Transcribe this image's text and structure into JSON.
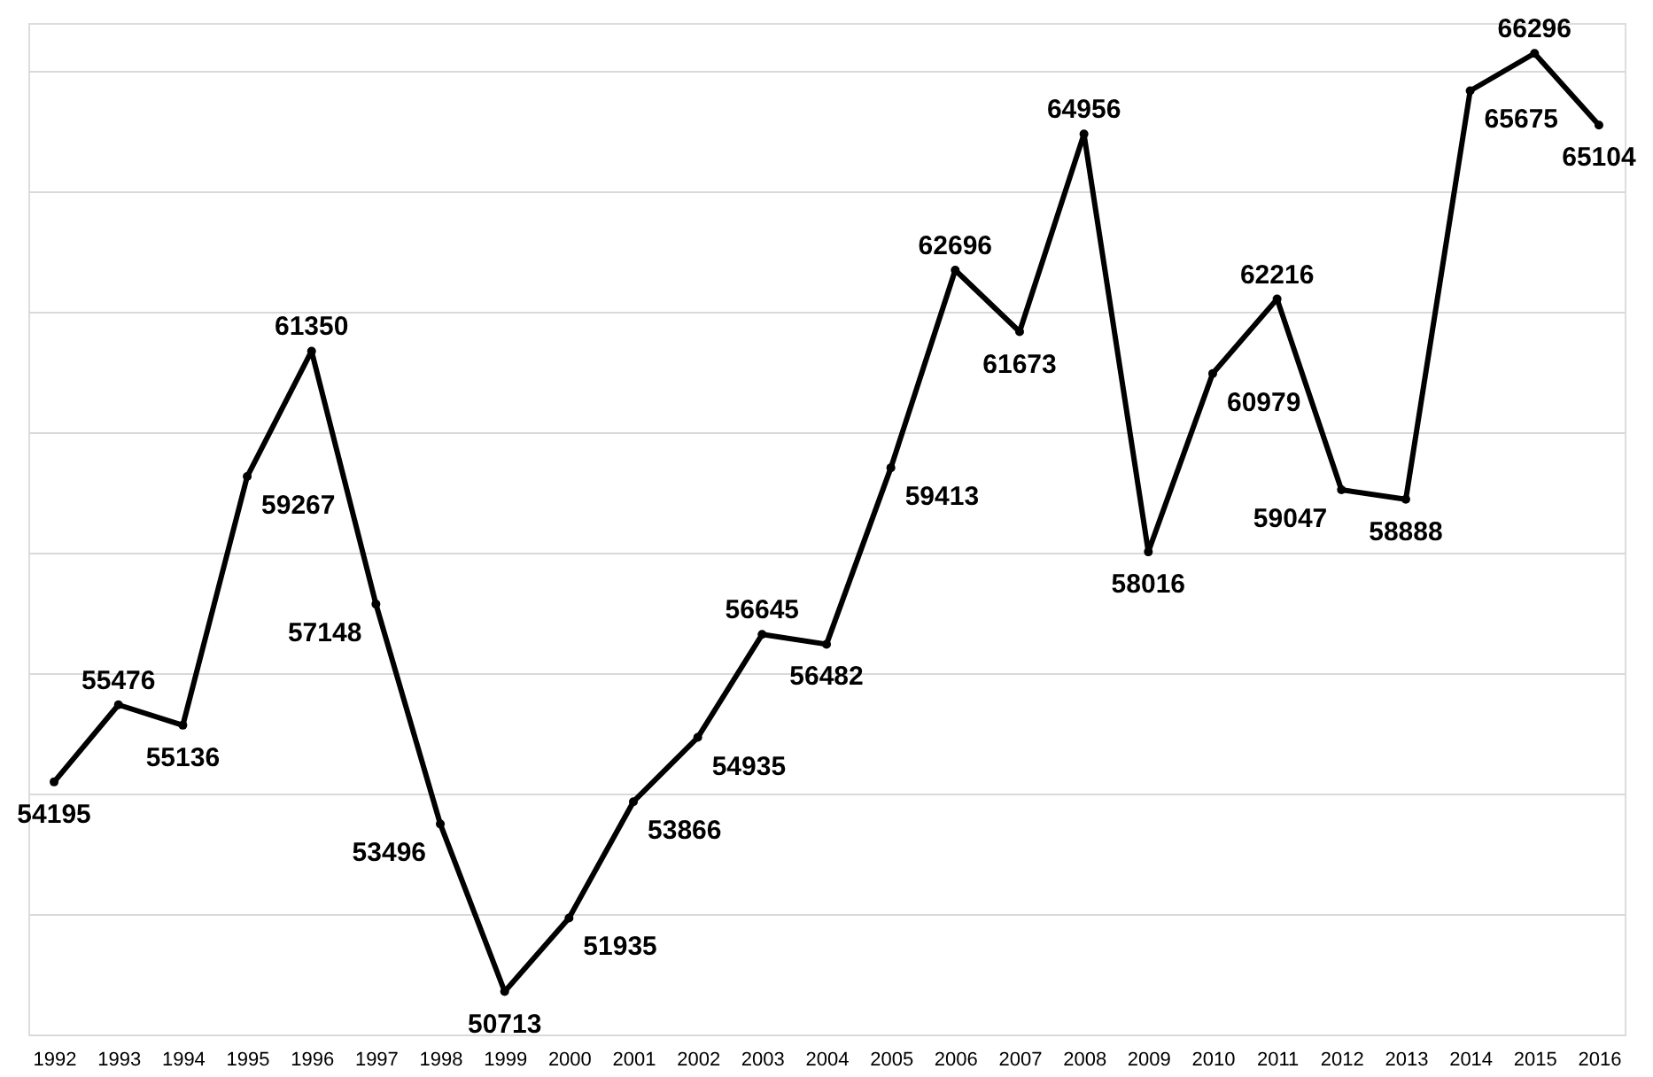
{
  "chart_data": {
    "type": "line",
    "categories": [
      "1992",
      "1993",
      "1994",
      "1995",
      "1996",
      "1997",
      "1998",
      "1999",
      "2000",
      "2001",
      "2002",
      "2003",
      "2004",
      "2005",
      "2006",
      "2007",
      "2008",
      "2009",
      "2010",
      "2011",
      "2012",
      "2013",
      "2014",
      "2015",
      "2016"
    ],
    "series": [
      {
        "color": "#000000",
        "values": [
          54195,
          55476,
          55136,
          59267,
          61350,
          57148,
          53496,
          50713,
          51935,
          53866,
          54935,
          56645,
          56482,
          59413,
          62696,
          61673,
          64956,
          58016,
          60979,
          62216,
          59047,
          58888,
          65675,
          66296,
          65104
        ]
      }
    ],
    "ylim": [
      50000,
      66800
    ],
    "yticks": [
      {
        "value": 50000,
        "label": null
      },
      {
        "value": 52000,
        "label": null
      },
      {
        "value": 54000,
        "label": null
      },
      {
        "value": 56000,
        "label": null
      },
      {
        "value": 58000,
        "label": null
      },
      {
        "value": 60000,
        "label": null
      },
      {
        "value": 62000,
        "label": null
      },
      {
        "value": 64000,
        "label": null
      },
      {
        "value": 66000,
        "label": null
      }
    ],
    "tick_labels": "x",
    "grid": "y",
    "marker": "circle",
    "line_style": "solid",
    "data_labels": true
  }
}
